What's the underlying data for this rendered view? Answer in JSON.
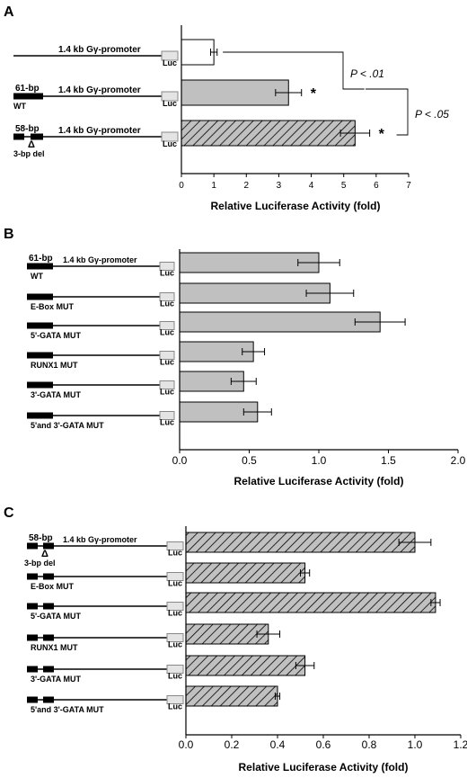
{
  "colors": {
    "gray_fill": "#c0c0c0",
    "white_fill": "#ffffff",
    "hatch_fill": "#c0c0c0",
    "line": "#000000",
    "luc_box": "#e4e4e4"
  },
  "common": {
    "luc": "Luc",
    "promoter": "1.4 kb Gγ-promoter"
  },
  "chart_data": [
    {
      "type": "bar",
      "orientation": "horizontal",
      "panel": "A",
      "xlabel": "Relative Luciferase Activity (fold)",
      "xlim": [
        0,
        7
      ],
      "ticks": [
        "0",
        "1",
        "2",
        "3",
        "4",
        "5",
        "6",
        "7"
      ],
      "constructs": [
        {
          "labels_above": [],
          "labels_below": []
        },
        {
          "labels_above": [
            "61-bp"
          ],
          "labels_below": [
            "WT"
          ]
        },
        {
          "labels_above": [
            "58-bp"
          ],
          "labels_below": [
            "Δ",
            "3-bp del"
          ]
        }
      ],
      "values": [
        1.0,
        3.3,
        5.35
      ],
      "errors": [
        0.1,
        0.4,
        0.45
      ],
      "fills": [
        "white",
        "gray",
        "hatch"
      ],
      "significance": [
        "",
        "*",
        "*"
      ],
      "p_values": [
        "P < .01",
        "P < .05"
      ]
    },
    {
      "type": "bar",
      "orientation": "horizontal",
      "panel": "B",
      "xlabel": "Relative Luciferase Activity (fold)",
      "xlim": [
        0,
        2.0
      ],
      "ticks": [
        "0.0",
        "0.5",
        "1.0",
        "1.5",
        "2.0"
      ],
      "constructs": [
        {
          "labels_above": [
            "61-bp"
          ],
          "labels_below": [
            "WT"
          ]
        },
        {
          "labels_above": [],
          "labels_below": [
            "E-Box MUT"
          ]
        },
        {
          "labels_above": [],
          "labels_below": [
            "5'-GATA MUT"
          ]
        },
        {
          "labels_above": [],
          "labels_below": [
            "RUNX1 MUT"
          ]
        },
        {
          "labels_above": [],
          "labels_below": [
            "3'-GATA MUT"
          ]
        },
        {
          "labels_above": [],
          "labels_below": [
            "5'and 3'-GATA MUT"
          ]
        }
      ],
      "values": [
        1.0,
        1.08,
        1.44,
        0.53,
        0.46,
        0.56
      ],
      "errors": [
        0.15,
        0.17,
        0.18,
        0.08,
        0.09,
        0.1
      ],
      "fills": [
        "gray",
        "gray",
        "gray",
        "gray",
        "gray",
        "gray"
      ]
    },
    {
      "type": "bar",
      "orientation": "horizontal",
      "panel": "C",
      "xlabel": "Relative Luciferase Activity (fold)",
      "xlim": [
        0,
        1.2
      ],
      "ticks": [
        "0.0",
        "0.2",
        "0.4",
        "0.6",
        "0.8",
        "1.0",
        "1.2"
      ],
      "constructs": [
        {
          "labels_above": [
            "58-bp"
          ],
          "labels_below": [
            "Δ",
            "3-bp del"
          ]
        },
        {
          "labels_above": [],
          "labels_below": [
            "E-Box MUT"
          ]
        },
        {
          "labels_above": [],
          "labels_below": [
            "5'-GATA MUT"
          ]
        },
        {
          "labels_above": [],
          "labels_below": [
            "RUNX1 MUT"
          ]
        },
        {
          "labels_above": [],
          "labels_below": [
            "3'-GATA MUT"
          ]
        },
        {
          "labels_above": [],
          "labels_below": [
            "5'and 3'-GATA MUT"
          ]
        }
      ],
      "values": [
        1.0,
        0.52,
        1.09,
        0.36,
        0.52,
        0.4
      ],
      "errors": [
        0.07,
        0.02,
        0.02,
        0.05,
        0.04,
        0.01
      ],
      "fills": [
        "hatch",
        "hatch",
        "hatch",
        "hatch",
        "hatch",
        "hatch"
      ]
    }
  ]
}
